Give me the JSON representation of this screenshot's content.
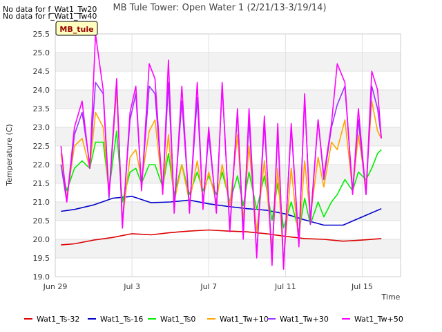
{
  "notes": [
    "No data for f_Wat1_Tw20",
    "No data for f_Wat1_Tw40"
  ],
  "station_label": "MB_tule",
  "chart_data": {
    "type": "line",
    "title": "MB Tule Tower: Open Water 1 (2/21/13-3/19/14)",
    "xlabel": "Time",
    "ylabel": "Temperature (C)",
    "xlim": [
      0,
      18
    ],
    "ylim": [
      19.0,
      25.5
    ],
    "xticks": [
      {
        "value": 0,
        "label": "Jun 29"
      },
      {
        "value": 4,
        "label": "Jul 3"
      },
      {
        "value": 8,
        "label": "Jul 7"
      },
      {
        "value": 12,
        "label": "Jul 11"
      },
      {
        "value": 16,
        "label": "Jul 15"
      }
    ],
    "yticks": [
      19.0,
      19.5,
      20.0,
      20.5,
      21.0,
      21.5,
      22.0,
      22.5,
      23.0,
      23.5,
      24.0,
      24.5,
      25.0,
      25.5
    ],
    "grid": true,
    "legend_position": "bottom",
    "series": [
      {
        "name": "Wat1_Ts-32",
        "color": "#dd0000",
        "x": [
          0.3,
          1,
          2,
          3,
          4,
          5,
          6,
          7,
          8,
          9,
          10,
          11,
          12,
          13,
          14,
          15,
          16,
          17
        ],
        "values": [
          19.85,
          19.88,
          19.98,
          20.05,
          20.15,
          20.12,
          20.18,
          20.22,
          20.25,
          20.22,
          20.2,
          20.15,
          20.08,
          20.02,
          20.0,
          19.95,
          19.98,
          20.02
        ]
      },
      {
        "name": "Wat1_Ts-16",
        "color": "#0000cc",
        "x": [
          0.3,
          1,
          2,
          3,
          4,
          5,
          6,
          7,
          8,
          9,
          10,
          11,
          12,
          13,
          14,
          15,
          16,
          17
        ],
        "values": [
          20.75,
          20.8,
          20.92,
          21.1,
          21.15,
          20.98,
          21.0,
          21.05,
          20.95,
          20.88,
          20.82,
          20.78,
          20.68,
          20.52,
          20.38,
          20.38,
          20.6,
          20.82
        ]
      },
      {
        "name": "Wat1_Ts0",
        "color": "#00ee00",
        "x": [
          0.3,
          0.6,
          1.0,
          1.4,
          1.8,
          2.1,
          2.5,
          2.8,
          3.2,
          3.5,
          3.9,
          4.2,
          4.5,
          4.9,
          5.2,
          5.6,
          5.9,
          6.2,
          6.6,
          7.0,
          7.4,
          7.7,
          8.0,
          8.4,
          8.7,
          9.1,
          9.5,
          9.8,
          10.1,
          10.5,
          10.9,
          11.3,
          11.6,
          11.9,
          12.3,
          12.7,
          13.0,
          13.3,
          13.7,
          14.0,
          14.4,
          14.7,
          15.1,
          15.5,
          15.8,
          16.2,
          16.5,
          16.8,
          17.0
        ],
        "values": [
          22.0,
          21.3,
          21.9,
          22.1,
          21.9,
          22.6,
          22.6,
          21.3,
          22.9,
          21.0,
          21.8,
          21.9,
          21.5,
          22.0,
          22.0,
          21.4,
          22.3,
          21.2,
          22.0,
          21.2,
          21.8,
          21.3,
          21.7,
          21.2,
          21.8,
          21.0,
          21.7,
          20.9,
          21.8,
          20.8,
          21.7,
          20.5,
          21.5,
          20.3,
          21.0,
          20.2,
          21.1,
          20.4,
          21.0,
          20.6,
          21.0,
          21.2,
          21.6,
          21.3,
          21.8,
          21.6,
          21.9,
          22.3,
          22.4
        ]
      },
      {
        "name": "Wat1_Tw+10",
        "color": "#ffa500",
        "x": [
          0.3,
          0.6,
          1.0,
          1.4,
          1.8,
          2.1,
          2.5,
          2.8,
          3.2,
          3.5,
          3.9,
          4.2,
          4.5,
          4.9,
          5.2,
          5.6,
          5.9,
          6.2,
          6.6,
          7.0,
          7.4,
          7.7,
          8.0,
          8.4,
          8.7,
          9.1,
          9.5,
          9.8,
          10.1,
          10.5,
          10.9,
          11.3,
          11.6,
          11.9,
          12.3,
          12.7,
          13.0,
          13.3,
          13.7,
          14.0,
          14.4,
          14.7,
          15.1,
          15.5,
          15.8,
          16.2,
          16.5,
          16.8,
          17.0
        ],
        "values": [
          22.3,
          21.1,
          22.5,
          22.7,
          21.9,
          23.4,
          23.0,
          21.2,
          24.0,
          20.5,
          22.2,
          22.4,
          21.6,
          22.9,
          23.2,
          21.3,
          22.8,
          21.0,
          22.0,
          21.0,
          22.1,
          21.1,
          21.8,
          21.0,
          22.0,
          20.9,
          22.8,
          20.5,
          22.5,
          20.2,
          22.1,
          19.8,
          21.9,
          19.4,
          21.9,
          19.9,
          22.1,
          20.6,
          22.2,
          21.4,
          22.6,
          22.4,
          23.2,
          21.3,
          22.8,
          21.4,
          23.7,
          22.9,
          22.7
        ]
      },
      {
        "name": "Wat1_Tw+30",
        "color": "#9933ff",
        "x": [
          0.3,
          0.6,
          1.0,
          1.4,
          1.8,
          2.1,
          2.5,
          2.8,
          3.2,
          3.5,
          3.9,
          4.2,
          4.5,
          4.9,
          5.2,
          5.6,
          5.9,
          6.2,
          6.6,
          7.0,
          7.4,
          7.7,
          8.0,
          8.4,
          8.7,
          9.1,
          9.5,
          9.8,
          10.1,
          10.5,
          10.9,
          11.3,
          11.6,
          11.9,
          12.3,
          12.7,
          13.0,
          13.3,
          13.7,
          14.0,
          14.4,
          14.7,
          15.1,
          15.5,
          15.8,
          16.2,
          16.5,
          16.8,
          17.0
        ],
        "values": [
          22.0,
          21.0,
          22.8,
          23.4,
          22.0,
          24.2,
          23.9,
          21.1,
          24.2,
          20.4,
          23.2,
          23.9,
          21.4,
          24.1,
          23.9,
          21.3,
          24.2,
          20.9,
          23.7,
          20.8,
          23.8,
          20.9,
          22.8,
          20.8,
          24.1,
          20.3,
          23.4,
          20.2,
          23.2,
          19.6,
          23.1,
          19.5,
          22.9,
          19.3,
          23.0,
          19.9,
          23.8,
          20.5,
          23.2,
          21.6,
          23.0,
          23.6,
          24.1,
          21.3,
          23.2,
          21.2,
          24.1,
          23.5,
          22.7
        ]
      },
      {
        "name": "Wat1_Tw+50",
        "color": "#ff00ff",
        "x": [
          0.3,
          0.6,
          1.0,
          1.4,
          1.8,
          2.1,
          2.5,
          2.8,
          3.2,
          3.5,
          3.9,
          4.2,
          4.5,
          4.9,
          5.2,
          5.6,
          5.9,
          6.2,
          6.6,
          7.0,
          7.4,
          7.7,
          8.0,
          8.4,
          8.7,
          9.1,
          9.5,
          9.8,
          10.1,
          10.5,
          10.9,
          11.3,
          11.6,
          11.9,
          12.3,
          12.7,
          13.0,
          13.3,
          13.7,
          14.0,
          14.4,
          14.7,
          15.1,
          15.5,
          15.8,
          16.2,
          16.5,
          16.8,
          17.0
        ],
        "values": [
          22.5,
          21.0,
          23.0,
          23.7,
          21.9,
          25.5,
          24.0,
          21.2,
          24.3,
          20.3,
          23.4,
          24.1,
          21.3,
          24.7,
          24.3,
          21.2,
          24.8,
          20.7,
          24.1,
          20.7,
          24.2,
          20.8,
          23.0,
          20.7,
          24.2,
          20.2,
          23.5,
          20.0,
          23.5,
          19.5,
          23.3,
          19.3,
          23.1,
          19.2,
          23.1,
          19.8,
          23.9,
          20.4,
          23.2,
          21.7,
          23.1,
          24.7,
          24.2,
          21.2,
          23.5,
          21.2,
          24.5,
          24.0,
          22.7
        ]
      }
    ]
  }
}
